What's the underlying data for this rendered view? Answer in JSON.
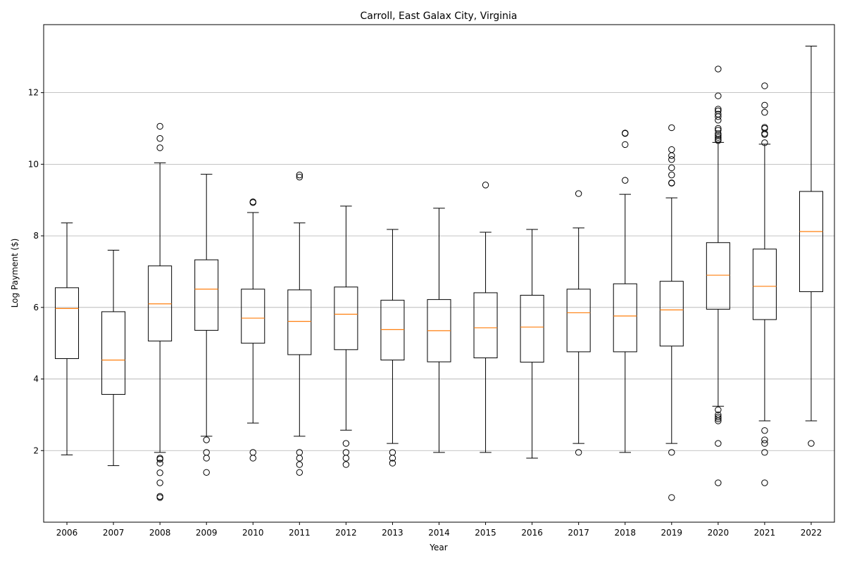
{
  "chart_data": {
    "type": "box",
    "title": "Carroll, East Galax City, Virginia",
    "xlabel": "Year",
    "ylabel": "Log Payment ($)",
    "ylim": [
      0.0,
      13.9
    ],
    "yticks": [
      2,
      4,
      6,
      8,
      10,
      12
    ],
    "grid": "y",
    "colors": {
      "box": "#000000",
      "median": "#ff7f0e",
      "grid": "#b0b0b0"
    },
    "categories": [
      "2006",
      "2007",
      "2008",
      "2009",
      "2010",
      "2011",
      "2012",
      "2013",
      "2014",
      "2015",
      "2016",
      "2017",
      "2018",
      "2019",
      "2020",
      "2021",
      "2022"
    ],
    "boxes": [
      {
        "label": "2006",
        "whislo": 1.88,
        "q1": 4.57,
        "med": 5.97,
        "q3": 6.55,
        "whishi": 8.36,
        "fliers": []
      },
      {
        "label": "2007",
        "whislo": 1.58,
        "q1": 3.57,
        "med": 4.53,
        "q3": 5.88,
        "whishi": 7.6,
        "fliers": []
      },
      {
        "label": "2008",
        "whislo": 1.95,
        "q1": 5.06,
        "med": 6.1,
        "q3": 7.16,
        "whishi": 10.04,
        "fliers": [
          11.06,
          10.72,
          10.46,
          1.79,
          1.76,
          1.65,
          1.38,
          1.1,
          0.72,
          0.69
        ]
      },
      {
        "label": "2009",
        "whislo": 2.4,
        "q1": 5.36,
        "med": 6.51,
        "q3": 7.33,
        "whishi": 9.72,
        "fliers": [
          2.3,
          1.95,
          1.79,
          1.39
        ]
      },
      {
        "label": "2010",
        "whislo": 2.77,
        "q1": 5.0,
        "med": 5.7,
        "q3": 6.51,
        "whishi": 8.65,
        "fliers": [
          8.95,
          8.93,
          1.95,
          1.79
        ]
      },
      {
        "label": "2011",
        "whislo": 2.4,
        "q1": 4.68,
        "med": 5.61,
        "q3": 6.49,
        "whishi": 8.36,
        "fliers": [
          9.7,
          9.64,
          1.95,
          1.79,
          1.61,
          1.39
        ]
      },
      {
        "label": "2012",
        "whislo": 2.57,
        "q1": 4.82,
        "med": 5.81,
        "q3": 6.57,
        "whishi": 8.83,
        "fliers": [
          2.2,
          1.95,
          1.79,
          1.61
        ]
      },
      {
        "label": "2013",
        "whislo": 2.2,
        "q1": 4.53,
        "med": 5.38,
        "q3": 6.2,
        "whishi": 8.18,
        "fliers": [
          1.95,
          1.79,
          1.65
        ]
      },
      {
        "label": "2014",
        "whislo": 1.95,
        "q1": 4.48,
        "med": 5.35,
        "q3": 6.22,
        "whishi": 8.77,
        "fliers": []
      },
      {
        "label": "2015",
        "whislo": 1.95,
        "q1": 4.59,
        "med": 5.43,
        "q3": 6.41,
        "whishi": 8.1,
        "fliers": [
          9.42
        ]
      },
      {
        "label": "2016",
        "whislo": 1.79,
        "q1": 4.47,
        "med": 5.45,
        "q3": 6.34,
        "whishi": 8.18,
        "fliers": []
      },
      {
        "label": "2017",
        "whislo": 2.2,
        "q1": 4.76,
        "med": 5.85,
        "q3": 6.51,
        "whishi": 8.22,
        "fliers": [
          9.18,
          1.95
        ]
      },
      {
        "label": "2018",
        "whislo": 1.95,
        "q1": 4.76,
        "med": 5.76,
        "q3": 6.66,
        "whishi": 9.16,
        "fliers": [
          10.87,
          10.86,
          10.55,
          9.55
        ]
      },
      {
        "label": "2019",
        "whislo": 2.2,
        "q1": 4.92,
        "med": 5.93,
        "q3": 6.73,
        "whishi": 9.06,
        "fliers": [
          11.02,
          10.41,
          10.24,
          10.13,
          9.9,
          9.7,
          9.48,
          9.47,
          1.95,
          0.69
        ]
      },
      {
        "label": "2020",
        "whislo": 3.24,
        "q1": 5.95,
        "med": 6.9,
        "q3": 7.81,
        "whishi": 10.61,
        "fliers": [
          12.66,
          11.91,
          11.54,
          11.49,
          11.4,
          11.33,
          11.23,
          11.0,
          10.95,
          10.85,
          10.8,
          10.75,
          10.7,
          10.66,
          3.14,
          3.0,
          2.94,
          2.89,
          2.83,
          2.2,
          1.1
        ]
      },
      {
        "label": "2021",
        "whislo": 2.83,
        "q1": 5.66,
        "med": 6.59,
        "q3": 7.63,
        "whishi": 10.56,
        "fliers": [
          12.19,
          11.65,
          11.45,
          11.03,
          11.0,
          10.86,
          10.83,
          10.6,
          2.56,
          2.3,
          2.2,
          1.95,
          1.1
        ]
      },
      {
        "label": "2022",
        "whislo": 2.83,
        "q1": 6.44,
        "med": 8.12,
        "q3": 9.24,
        "whishi": 13.3,
        "fliers": [
          2.2
        ]
      }
    ]
  }
}
